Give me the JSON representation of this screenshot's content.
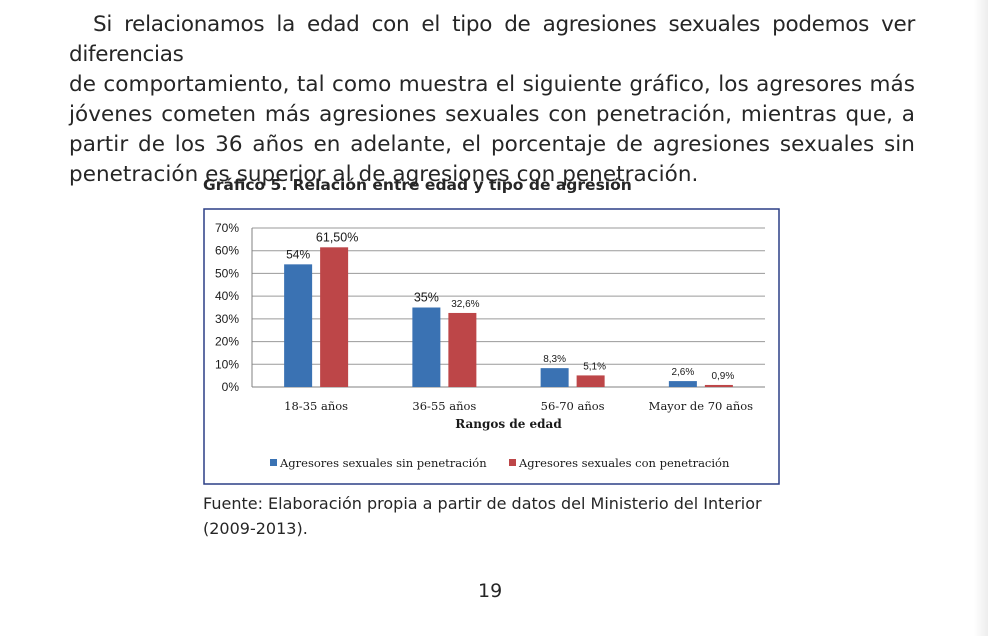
{
  "paragraph": {
    "line1": "Si relacionamos la edad con el tipo de agresiones sexuales podemos ver diferencias",
    "rest": "de comportamiento, tal como muestra el siguiente gráfico, los agresores más jóvenes cometen más agresiones sexuales con penetración, mientras que, a partir de los 36 años en adelante, el porcentaje de agresiones sexuales sin penetración es superior al de agresiones con penetración."
  },
  "chart_title": "Gráfico 5. Relación entre edad y tipo de agresión",
  "chart_data": {
    "type": "bar",
    "title": "",
    "xlabel": "Rangos de edad",
    "ylabel": "",
    "ylim": [
      0,
      70
    ],
    "yticks": [
      0,
      10,
      20,
      30,
      40,
      50,
      60,
      70
    ],
    "ytick_labels": [
      "0%",
      "10%",
      "20%",
      "30%",
      "40%",
      "50%",
      "60%",
      "70%"
    ],
    "categories": [
      "18-35 años",
      "36-55 años",
      "56-70 años",
      "Mayor de 70 años"
    ],
    "grid": true,
    "legend_position": "bottom",
    "series": [
      {
        "name": "Agresores sexuales sin penetración",
        "color": "#3a72b3",
        "values": [
          54,
          35,
          8.3,
          2.6
        ],
        "labels": [
          "54%",
          "35%",
          "8,3%",
          "2,6%"
        ]
      },
      {
        "name": "Agresores sexuales con penetración",
        "color": "#bd4648",
        "values": [
          61.5,
          32.6,
          5.1,
          0.9
        ],
        "labels": [
          "61,50%",
          "32,6%",
          "5,1%",
          "0,9%"
        ]
      }
    ]
  },
  "source_text": "Fuente: Elaboración propia a partir de datos del Ministerio del Interior (2009-2013).",
  "page_number": "19"
}
